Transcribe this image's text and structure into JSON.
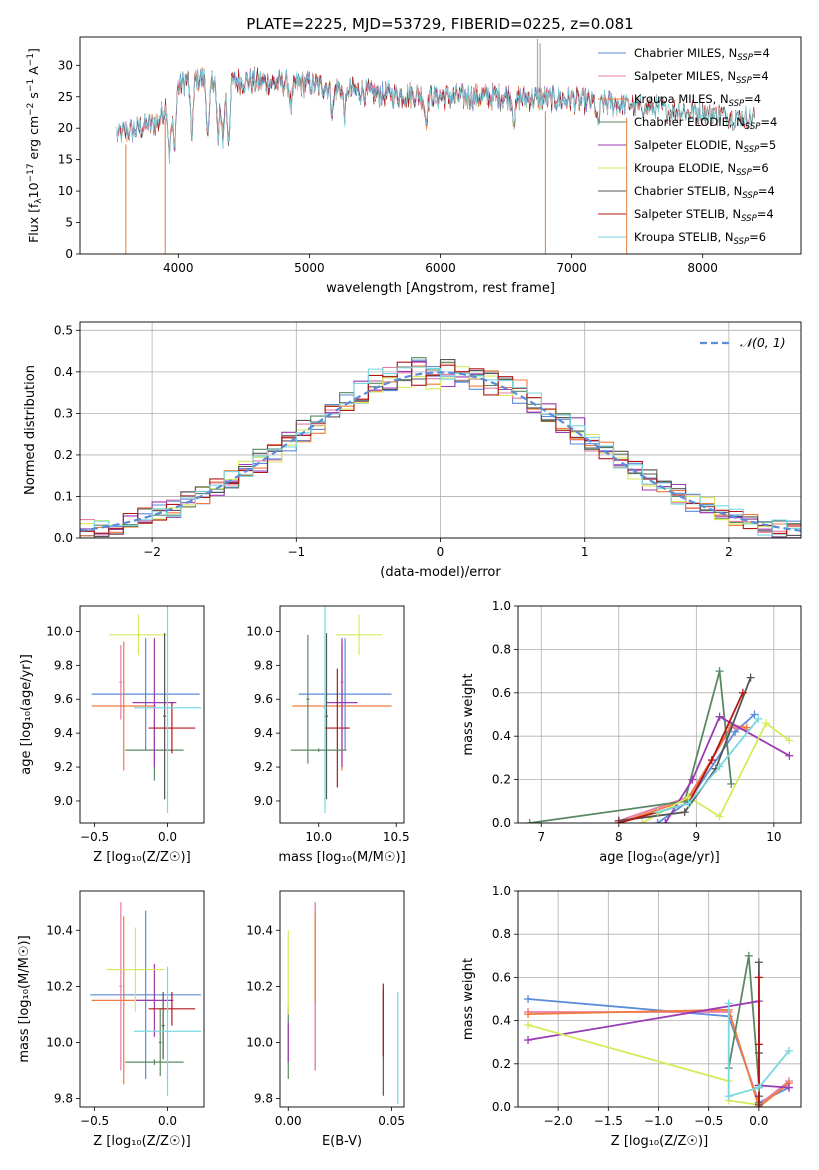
{
  "figure_title": "PLATE=2225, MJD=53729, FIBERID=0225, z=0.081",
  "colors": {
    "chabrier_miles": "#5b8bd9",
    "salpeter_miles": "#e87ba5",
    "kroupa_miles": "#f07b3c",
    "chabrier_elodie": "#5a8a62",
    "salpeter_elodie": "#9a3ab5",
    "kroupa_elodie": "#d8ea5c",
    "chabrier_stelib": "#555555",
    "salpeter_stelib": "#b01818",
    "kroupa_stelib": "#78d8e0",
    "normal_curve": "#5b8bd9"
  },
  "chart_data": [
    {
      "id": "spectrum",
      "type": "line",
      "xlabel": "wavelength [Angstrom, rest frame]",
      "ylabel_parts": [
        "Flux [f",
        "λ",
        "10",
        "−17",
        " erg cm",
        "−2",
        " s",
        "−1",
        " A",
        "−1",
        "]"
      ],
      "xlim": [
        3250,
        8750
      ],
      "ylim": [
        0,
        34.5
      ],
      "xticks": [
        4000,
        5000,
        6000,
        7000,
        8000
      ],
      "yticks": [
        0,
        5,
        10,
        15,
        20,
        25,
        30
      ],
      "grid": false,
      "legend_position": "upper right",
      "legend": [
        {
          "name": "Chabrier MILES, N",
          "sub": "SSP",
          "suffix": "=4",
          "color_key": "chabrier_miles"
        },
        {
          "name": "Salpeter MILES, N",
          "sub": "SSP",
          "suffix": "=4",
          "color_key": "salpeter_miles"
        },
        {
          "name": "Kroupa MILES, N",
          "sub": "SSP",
          "suffix": "=4",
          "color_key": "kroupa_miles"
        },
        {
          "name": "Chabrier ELODIE, N",
          "sub": "SSP",
          "suffix": "=4",
          "color_key": "chabrier_elodie"
        },
        {
          "name": "Salpeter ELODIE, N",
          "sub": "SSP",
          "suffix": "=5",
          "color_key": "salpeter_elodie"
        },
        {
          "name": "Kroupa ELODIE, N",
          "sub": "SSP",
          "suffix": "=6",
          "color_key": "kroupa_elodie"
        },
        {
          "name": "Chabrier STELIB, N",
          "sub": "SSP",
          "suffix": "=4",
          "color_key": "chabrier_stelib"
        },
        {
          "name": "Salpeter STELIB, N",
          "sub": "SSP",
          "suffix": "=4",
          "color_key": "salpeter_stelib"
        },
        {
          "name": "Kroupa STELIB, N",
          "sub": "SSP",
          "suffix": "=6",
          "color_key": "kroupa_stelib"
        }
      ],
      "continuum": [
        [
          3530,
          19
        ],
        [
          3700,
          20
        ],
        [
          3850,
          21
        ],
        [
          3950,
          26
        ],
        [
          4100,
          28
        ],
        [
          4300,
          27.5
        ],
        [
          4500,
          27.5
        ],
        [
          5000,
          27
        ],
        [
          5500,
          25.5
        ],
        [
          6000,
          25
        ],
        [
          6500,
          25
        ],
        [
          7000,
          24.5
        ],
        [
          7500,
          23.5
        ],
        [
          8000,
          22.5
        ],
        [
          8400,
          21.5
        ]
      ],
      "absorption_lines": [
        3934,
        3969,
        4102,
        4227,
        4305,
        4341,
        4383,
        4861,
        5175,
        5270,
        5890,
        6563,
        7200
      ],
      "spikes": [
        [
          6740,
          34.2
        ],
        [
          6760,
          33.5
        ]
      ],
      "range_start": {
        "miles": 3530,
        "elodie": 4000,
        "stelib": 3530
      },
      "range_end": {
        "miles": 7420,
        "elodie": 6800,
        "stelib": 8400
      },
      "drop_to_zero": [
        3600,
        3900,
        6800,
        7420
      ]
    },
    {
      "id": "residuals",
      "type": "step-histogram",
      "xlabel": "(data-model)/error",
      "ylabel": "Normed distribution",
      "xlim": [
        -2.5,
        2.5
      ],
      "ylim": [
        0,
        0.52
      ],
      "xticks": [
        -2,
        -1,
        0,
        1,
        2
      ],
      "yticks": [
        0.0,
        0.1,
        0.2,
        0.3,
        0.4,
        0.5
      ],
      "grid": true,
      "bin_width": 0.1,
      "legend_position": "upper right",
      "legend": [
        {
          "name": "𝒩(0, 1)",
          "style": "dashed",
          "color_key": "normal_curve"
        }
      ],
      "model_keys": [
        "chabrier_miles",
        "salpeter_miles",
        "kroupa_miles",
        "chabrier_elodie",
        "salpeter_elodie",
        "kroupa_elodie",
        "chabrier_stelib",
        "salpeter_stelib",
        "kroupa_stelib"
      ],
      "mu": 0,
      "sigma": 1
    },
    {
      "id": "age_vs_Z",
      "type": "errorbar",
      "xlabel": "Z [log₁₀(Z/Z☉)]",
      "ylabel": "age  [log₁₀(age/yr)]",
      "xlim": [
        -0.6,
        0.25
      ],
      "ylim": [
        8.87,
        10.15
      ],
      "xticks": [
        -0.5,
        0.0
      ],
      "yticks": [
        9.0,
        9.2,
        9.4,
        9.6,
        9.8,
        10.0
      ],
      "grid": false,
      "points": [
        {
          "key": "chabrier_miles",
          "x": -0.15,
          "xerr": 0.37,
          "y": 9.63,
          "yerr": 0.33
        },
        {
          "key": "salpeter_miles",
          "x": -0.32,
          "xerr": 0.01,
          "y": 9.7,
          "yerr": 0.22
        },
        {
          "key": "kroupa_miles",
          "x": -0.3,
          "xerr": 0.22,
          "y": 9.56,
          "yerr": 0.38
        },
        {
          "key": "chabrier_elodie",
          "x": -0.09,
          "xerr": 0.2,
          "y": 9.3,
          "yerr": 0.18
        },
        {
          "key": "salpeter_elodie",
          "x": -0.09,
          "xerr": 0.15,
          "y": 9.58,
          "yerr": 0.38
        },
        {
          "key": "kroupa_elodie",
          "x": -0.2,
          "xerr": 0.2,
          "y": 9.98,
          "yerr": 0.12
        },
        {
          "key": "chabrier_stelib",
          "x": -0.02,
          "xerr": 0.01,
          "y": 9.5,
          "yerr": 0.49
        },
        {
          "key": "salpeter_stelib",
          "x": 0.03,
          "xerr": 0.16,
          "y": 9.43,
          "yerr": 0.15
        },
        {
          "key": "kroupa_stelib",
          "x": 0.0,
          "xerr": 0.23,
          "y": 9.55,
          "yerr": 0.62
        }
      ]
    },
    {
      "id": "age_vs_mass",
      "type": "errorbar",
      "xlabel": "mass [log₁₀(M/M☉)]",
      "ylabel": "",
      "xlim": [
        9.75,
        10.55
      ],
      "ylim": [
        8.87,
        10.15
      ],
      "xticks": [
        10.0,
        10.5
      ],
      "yticks": [
        9.0,
        9.2,
        9.4,
        9.6,
        9.8,
        10.0
      ],
      "grid": false,
      "points": [
        {
          "key": "chabrier_miles",
          "x": 10.17,
          "xerr": 0.3,
          "y": 9.63,
          "yerr": 0.33
        },
        {
          "key": "salpeter_miles",
          "x": 10.15,
          "xerr": 0.01,
          "y": 9.7,
          "yerr": 0.22
        },
        {
          "key": "kroupa_miles",
          "x": 10.15,
          "xerr": 0.32,
          "y": 9.56,
          "yerr": 0.38
        },
        {
          "key": "chabrier_elodie",
          "x": 9.93,
          "xerr": 0.01,
          "y": 9.6,
          "yerr": 0.38
        },
        {
          "key": "salpeter_elodie",
          "x": 10.15,
          "xerr": 0.1,
          "y": 9.58,
          "yerr": 0.38
        },
        {
          "key": "kroupa_elodie",
          "x": 10.26,
          "xerr": 0.15,
          "y": 9.98,
          "yerr": 0.12
        },
        {
          "key": "chabrier_stelib",
          "x": 10.05,
          "xerr": 0.01,
          "y": 9.5,
          "yerr": 0.49
        },
        {
          "key": "salpeter_stelib",
          "x": 10.12,
          "xerr": 0.08,
          "y": 9.43,
          "yerr": 0.35
        },
        {
          "key": "kroupa_stelib",
          "x": 10.04,
          "xerr": 0.01,
          "y": 9.55,
          "yerr": 0.62
        },
        {
          "key": "chabrier_elodie",
          "x": 10.0,
          "xerr": 0.18,
          "y": 9.3,
          "yerr": 0.01
        }
      ]
    },
    {
      "id": "weight_vs_age",
      "type": "line",
      "xlabel": "age  [log₁₀(age/yr)]",
      "ylabel": "mass weight",
      "xlim": [
        6.7,
        10.35
      ],
      "ylim": [
        0.0,
        1.0
      ],
      "xticks": [
        7,
        8,
        9,
        10
      ],
      "yticks": [
        0.0,
        0.2,
        0.4,
        0.6,
        0.8,
        1.0
      ],
      "grid": true,
      "series": [
        {
          "key": "chabrier_miles",
          "x": [
            8.5,
            8.9,
            9.5,
            9.75
          ],
          "y": [
            0.0,
            0.1,
            0.42,
            0.5
          ]
        },
        {
          "key": "salpeter_miles",
          "x": [
            8.0,
            8.9,
            9.45,
            9.65
          ],
          "y": [
            0.01,
            0.12,
            0.44,
            0.43
          ]
        },
        {
          "key": "kroupa_miles",
          "x": [
            8.0,
            8.9,
            9.45,
            9.65
          ],
          "y": [
            0.0,
            0.11,
            0.45,
            0.44
          ]
        },
        {
          "key": "chabrier_elodie",
          "x": [
            6.85,
            8.85,
            9.3,
            9.45
          ],
          "y": [
            0.0,
            0.1,
            0.7,
            0.18
          ]
        },
        {
          "key": "salpeter_elodie",
          "x": [
            8.6,
            8.95,
            9.3,
            10.2
          ],
          "y": [
            0.0,
            0.2,
            0.49,
            0.31
          ]
        },
        {
          "key": "kroupa_elodie",
          "x": [
            8.3,
            8.9,
            9.3,
            9.9,
            10.2
          ],
          "y": [
            0.0,
            0.12,
            0.03,
            0.46,
            0.38
          ]
        },
        {
          "key": "chabrier_stelib",
          "x": [
            8.0,
            8.85,
            9.25,
            9.7
          ],
          "y": [
            0.01,
            0.05,
            0.25,
            0.67
          ]
        },
        {
          "key": "salpeter_stelib",
          "x": [
            8.0,
            8.9,
            9.2,
            9.6
          ],
          "y": [
            0.0,
            0.09,
            0.29,
            0.6
          ]
        },
        {
          "key": "kroupa_stelib",
          "x": [
            8.5,
            8.9,
            9.3,
            9.8
          ],
          "y": [
            0.05,
            0.09,
            0.26,
            0.48
          ]
        }
      ]
    },
    {
      "id": "mass_vs_Z",
      "type": "errorbar",
      "xlabel": "Z [log₁₀(Z/Z☉)]",
      "ylabel": "mass [log₁₀(M/M☉)]",
      "xlim": [
        -0.6,
        0.25
      ],
      "ylim": [
        9.77,
        10.54
      ],
      "xticks": [
        -0.5,
        0.0
      ],
      "yticks": [
        9.8,
        10.0,
        10.2,
        10.4
      ],
      "grid": false,
      "points": [
        {
          "key": "chabrier_miles",
          "x": -0.15,
          "xerr": 0.38,
          "y": 10.17,
          "yerr": 0.3
        },
        {
          "key": "salpeter_miles",
          "x": -0.32,
          "xerr": 0.01,
          "y": 10.2,
          "yerr": 0.3
        },
        {
          "key": "kroupa_miles",
          "x": -0.3,
          "xerr": 0.22,
          "y": 10.15,
          "yerr": 0.3
        },
        {
          "key": "chabrier_elodie",
          "x": -0.09,
          "xerr": 0.2,
          "y": 9.93,
          "yerr": 0.01
        },
        {
          "key": "chabrier_elodie",
          "x": -0.05,
          "xerr": 0.01,
          "y": 10.0,
          "yerr": 0.12
        },
        {
          "key": "salpeter_elodie",
          "x": -0.09,
          "xerr": 0.13,
          "y": 10.15,
          "yerr": 0.13
        },
        {
          "key": "kroupa_elodie",
          "x": -0.22,
          "xerr": 0.2,
          "y": 10.26,
          "yerr": 0.15
        },
        {
          "key": "chabrier_stelib",
          "x": -0.03,
          "xerr": 0.01,
          "y": 10.06,
          "yerr": 0.12
        },
        {
          "key": "salpeter_stelib",
          "x": 0.03,
          "xerr": 0.16,
          "y": 10.12,
          "yerr": 0.06
        },
        {
          "key": "kroupa_stelib",
          "x": 0.0,
          "xerr": 0.23,
          "y": 10.04,
          "yerr": 0.23
        }
      ]
    },
    {
      "id": "mass_vs_ebv",
      "type": "errorbar",
      "xlabel": "E(B-V)",
      "ylabel": "",
      "xlim": [
        -0.004,
        0.056
      ],
      "ylim": [
        9.77,
        10.54
      ],
      "xticks": [
        0.0,
        0.05
      ],
      "yticks": [
        9.8,
        10.0,
        10.2,
        10.4
      ],
      "grid": false,
      "points": [
        {
          "key": "chabrier_miles",
          "x": 0.013,
          "xerr": 0.0,
          "y": 10.2,
          "yerr": 0.3
        },
        {
          "key": "salpeter_miles",
          "x": 0.013,
          "xerr": 0.0,
          "y": 10.2,
          "yerr": 0.3
        },
        {
          "key": "kroupa_miles",
          "x": 0.013,
          "xerr": 0.0,
          "y": 10.3,
          "yerr": 0.16
        },
        {
          "key": "chabrier_elodie",
          "x": 0.0,
          "xerr": 0.0,
          "y": 10.0,
          "yerr": 0.13
        },
        {
          "key": "salpeter_elodie",
          "x": 0.0,
          "xerr": 0.0,
          "y": 10.0,
          "yerr": 0.07
        },
        {
          "key": "kroupa_elodie",
          "x": 0.0,
          "xerr": 0.0,
          "y": 10.25,
          "yerr": 0.15
        },
        {
          "key": "chabrier_stelib",
          "x": 0.046,
          "xerr": 0.0,
          "y": 10.0,
          "yerr": 0.19
        },
        {
          "key": "salpeter_stelib",
          "x": 0.046,
          "xerr": 0.0,
          "y": 10.08,
          "yerr": 0.13
        },
        {
          "key": "kroupa_stelib",
          "x": 0.053,
          "xerr": 0.0,
          "y": 9.98,
          "yerr": 0.2
        }
      ]
    },
    {
      "id": "weight_vs_Z",
      "type": "line",
      "xlabel": "Z [log₁₀(Z/Z☉)]",
      "ylabel": "mass weight",
      "xlim": [
        -2.4,
        0.42
      ],
      "ylim": [
        0.0,
        1.0
      ],
      "xticks": [
        -2.0,
        -1.5,
        -1.0,
        -0.5,
        0.0
      ],
      "yticks": [
        0.0,
        0.2,
        0.4,
        0.6,
        0.8,
        1.0
      ],
      "grid": true,
      "series": [
        {
          "key": "chabrier_miles",
          "x": [
            -2.3,
            -0.3,
            0.0,
            0.3
          ],
          "y": [
            0.5,
            0.42,
            0.02,
            0.09
          ]
        },
        {
          "key": "salpeter_miles",
          "x": [
            -2.3,
            -0.3,
            0.0,
            0.3
          ],
          "y": [
            0.44,
            0.44,
            0.01,
            0.12
          ]
        },
        {
          "key": "kroupa_miles",
          "x": [
            -2.3,
            -0.3,
            0.0,
            0.3
          ],
          "y": [
            0.43,
            0.45,
            0.0,
            0.11
          ]
        },
        {
          "key": "chabrier_elodie",
          "x": [
            -0.3,
            -0.1,
            0.0,
            0.0
          ],
          "y": [
            0.18,
            0.7,
            0.1,
            0.02
          ]
        },
        {
          "key": "salpeter_elodie",
          "x": [
            -2.3,
            0.0,
            0.0,
            0.3
          ],
          "y": [
            0.31,
            0.49,
            0.1,
            0.09
          ]
        },
        {
          "key": "kroupa_elodie",
          "x": [
            -2.3,
            -0.3,
            -0.3,
            0.0
          ],
          "y": [
            0.38,
            0.12,
            0.03,
            0.01
          ]
        },
        {
          "key": "chabrier_stelib",
          "x": [
            0.0,
            0.0,
            0.0,
            0.0
          ],
          "y": [
            0.67,
            0.25,
            0.05,
            0.01
          ]
        },
        {
          "key": "salpeter_stelib",
          "x": [
            0.0,
            0.0,
            0.0,
            0.0
          ],
          "y": [
            0.6,
            0.29,
            0.09,
            0.0
          ]
        },
        {
          "key": "kroupa_stelib",
          "x": [
            -0.3,
            -0.3,
            0.0,
            0.3
          ],
          "y": [
            0.48,
            0.05,
            0.09,
            0.26
          ]
        }
      ]
    }
  ]
}
